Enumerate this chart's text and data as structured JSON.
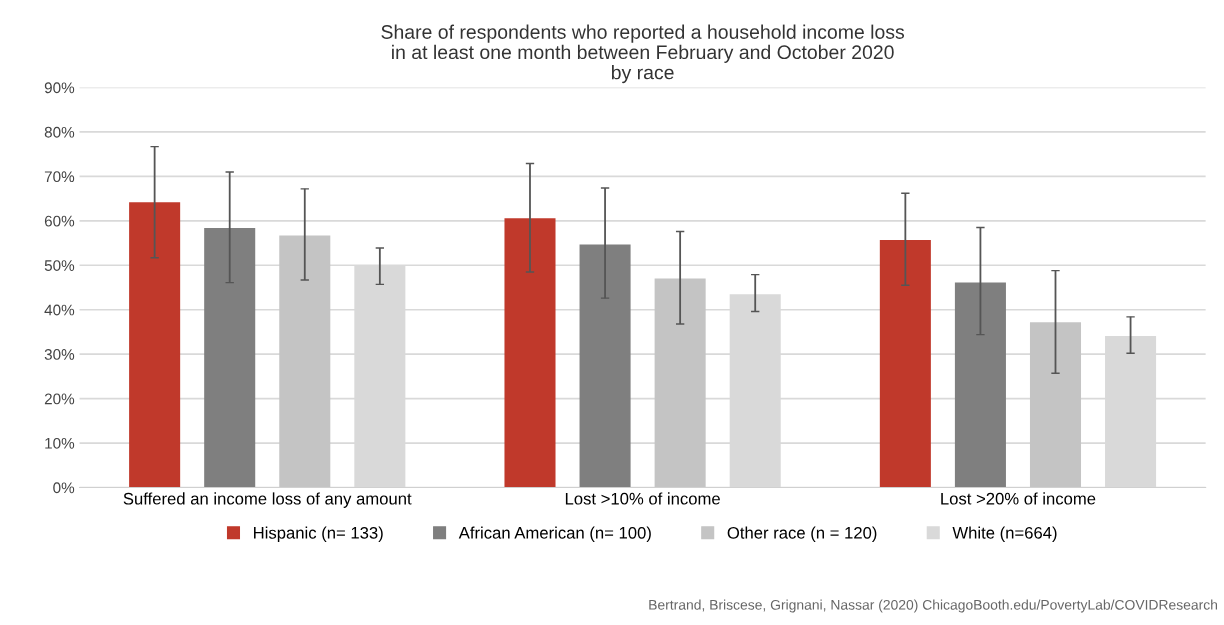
{
  "chart_data": {
    "type": "bar",
    "title": "Share of respondents who reported a household income loss\nin at least one month between February and October 2020\nby race",
    "categories": [
      "Suffered an income loss of any amount",
      "Lost >10% of income",
      "Lost >20% of income"
    ],
    "series": [
      {
        "name": "Hispanic (n= 133)",
        "color": "#c0392b",
        "values": [
          64.2,
          60.6,
          55.7
        ],
        "errors": [
          [
            51.7,
            76.7
          ],
          [
            48.5,
            72.9
          ],
          [
            45.5,
            66.2
          ]
        ]
      },
      {
        "name": "African American (n= 100)",
        "color": "#7f7f7f",
        "values": [
          58.4,
          54.7,
          46.1
        ],
        "errors": [
          [
            46.1,
            71.0
          ],
          [
            42.6,
            67.4
          ],
          [
            34.4,
            58.5
          ]
        ]
      },
      {
        "name": "Other race (n = 120)",
        "color": "#c4c4c4",
        "values": [
          56.7,
          47.0,
          37.2
        ],
        "errors": [
          [
            46.7,
            67.2
          ],
          [
            36.8,
            57.6
          ],
          [
            25.7,
            48.8
          ]
        ]
      },
      {
        "name": "White (n=664)",
        "color": "#d9d9d9",
        "values": [
          49.9,
          43.5,
          34.1
        ],
        "errors": [
          [
            45.7,
            53.9
          ],
          [
            39.6,
            47.9
          ],
          [
            30.2,
            38.4
          ]
        ]
      }
    ],
    "ylim": [
      0,
      90
    ],
    "yticks": [
      {
        "value": 0,
        "label": "0%"
      },
      {
        "value": 10,
        "label": "10%"
      },
      {
        "value": 20,
        "label": "20%"
      },
      {
        "value": 30,
        "label": "30%"
      },
      {
        "value": 40,
        "label": "40%"
      },
      {
        "value": 50,
        "label": "50%"
      },
      {
        "value": 60,
        "label": "60%"
      },
      {
        "value": 70,
        "label": "70%"
      },
      {
        "value": 80,
        "label": "80%"
      },
      {
        "value": 90,
        "label": "90%"
      }
    ],
    "grid": "y",
    "legend": "bottom",
    "annotations": [
      "Bertrand, Briscese, Grignani, Nassar (2020) ChicagoBooth.edu/PovertyLab/COVIDResearch"
    ]
  }
}
